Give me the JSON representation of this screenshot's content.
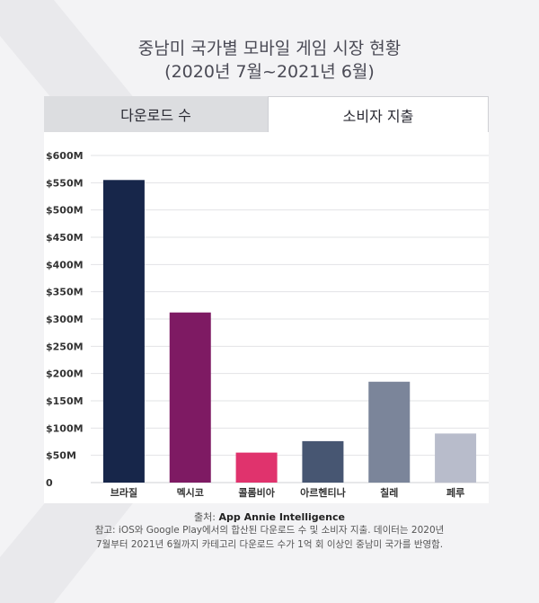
{
  "title_line1": "중남미 국가별 모바일 게임 시장 현황",
  "title_line2": "(2020년 7월~2021년 6월)",
  "tabs": [
    {
      "label": "다운로드 수",
      "active": false
    },
    {
      "label": "소비자 지출",
      "active": true
    }
  ],
  "source_label": "출처:",
  "source_name": "App Annie Intelligence",
  "note_line1": "참고: iOS와 Google Play에서의 합산된 다운로드 수 및 소비자 지출. 데이터는 2020년",
  "note_line2": "7월부터 2021년 6월까지 카테고리 다운로드 수가 1억 회 이상인 중남미 국가를 반영함.",
  "chart_data": {
    "type": "bar",
    "categories": [
      "브라질",
      "멕시코",
      "콜롬비아",
      "아르헨티나",
      "칠레",
      "페루"
    ],
    "values": [
      555,
      312,
      55,
      76,
      185,
      90
    ],
    "colors": [
      "#17264a",
      "#7e1a63",
      "#e0336d",
      "#475672",
      "#7b859a",
      "#b8bccb"
    ],
    "ylim": [
      0,
      600
    ],
    "yticks": [
      0,
      50,
      100,
      150,
      200,
      250,
      300,
      350,
      400,
      450,
      500,
      550,
      600
    ],
    "ytick_labels": [
      "0",
      "$50M",
      "$100M",
      "$150M",
      "$200M",
      "$250M",
      "$300M",
      "$350M",
      "$400M",
      "$450M",
      "$500M",
      "$550M",
      "$600M"
    ],
    "grid": true,
    "grid_color": "#e2e3e6"
  }
}
